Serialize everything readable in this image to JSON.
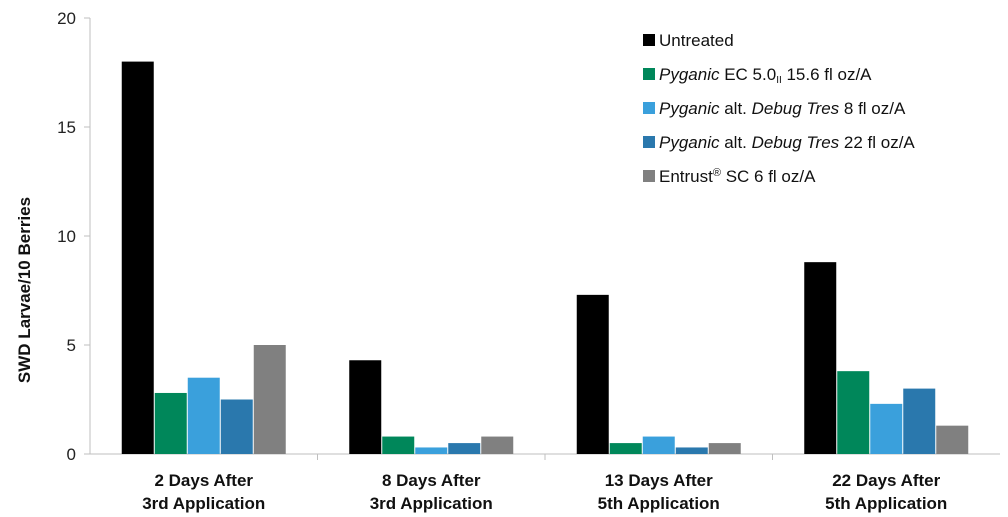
{
  "chart_data": {
    "type": "bar",
    "title": "",
    "xlabel": "",
    "ylabel": "SWD Larvae/10 Berries",
    "ylim": [
      0,
      20
    ],
    "yticks": [
      "0",
      "5",
      "10",
      "15",
      "20"
    ],
    "grid": false,
    "legend_position": "top-right",
    "categories": [
      [
        "2 Days After",
        "3rd Application"
      ],
      [
        "8 Days After",
        "3rd Application"
      ],
      [
        "13 Days After",
        "5th Application"
      ],
      [
        "22 Days After",
        "5th Application"
      ]
    ],
    "series": [
      {
        "name": "Untreated",
        "legend": [
          {
            "text": "Untreated",
            "italic": false
          }
        ],
        "color": "#000000",
        "values": [
          18.0,
          4.3,
          7.3,
          8.8
        ]
      },
      {
        "name": "Pyganic EC 5.0II 15.6 fl oz/A",
        "legend": [
          {
            "text": "Pyganic",
            "italic": true
          },
          {
            "text": " EC 5.0",
            "italic": false
          },
          {
            "text": "II",
            "italic": false,
            "sub": true
          },
          {
            "text": " 15.6 fl oz/A",
            "italic": false
          }
        ],
        "color": "#00875a",
        "values": [
          2.8,
          0.8,
          0.5,
          3.8
        ]
      },
      {
        "name": "Pyganic alt. Debug Tres 8 fl oz/A",
        "legend": [
          {
            "text": "Pyganic",
            "italic": true
          },
          {
            "text": " alt. ",
            "italic": false
          },
          {
            "text": "Debug Tres",
            "italic": true
          },
          {
            "text": " 8 fl oz/A",
            "italic": false
          }
        ],
        "color": "#3aa0dc",
        "values": [
          3.5,
          0.3,
          0.8,
          2.3
        ]
      },
      {
        "name": "Pyganic alt. Debug Tres 22 fl oz/A",
        "legend": [
          {
            "text": "Pyganic",
            "italic": true
          },
          {
            "text": " alt. ",
            "italic": false
          },
          {
            "text": "Debug Tres",
            "italic": true
          },
          {
            "text": " 22 fl oz/A",
            "italic": false
          }
        ],
        "color": "#2a78ad",
        "values": [
          2.5,
          0.5,
          0.3,
          3.0
        ]
      },
      {
        "name": "Entrust® SC 6 fl oz/A",
        "legend": [
          {
            "text": "Entrust",
            "italic": false
          },
          {
            "text": "®",
            "italic": false,
            "sup": true
          },
          {
            "text": " SC 6 fl oz/A",
            "italic": false
          }
        ],
        "color": "#808080",
        "values": [
          5.0,
          0.8,
          0.5,
          1.3
        ]
      }
    ]
  }
}
